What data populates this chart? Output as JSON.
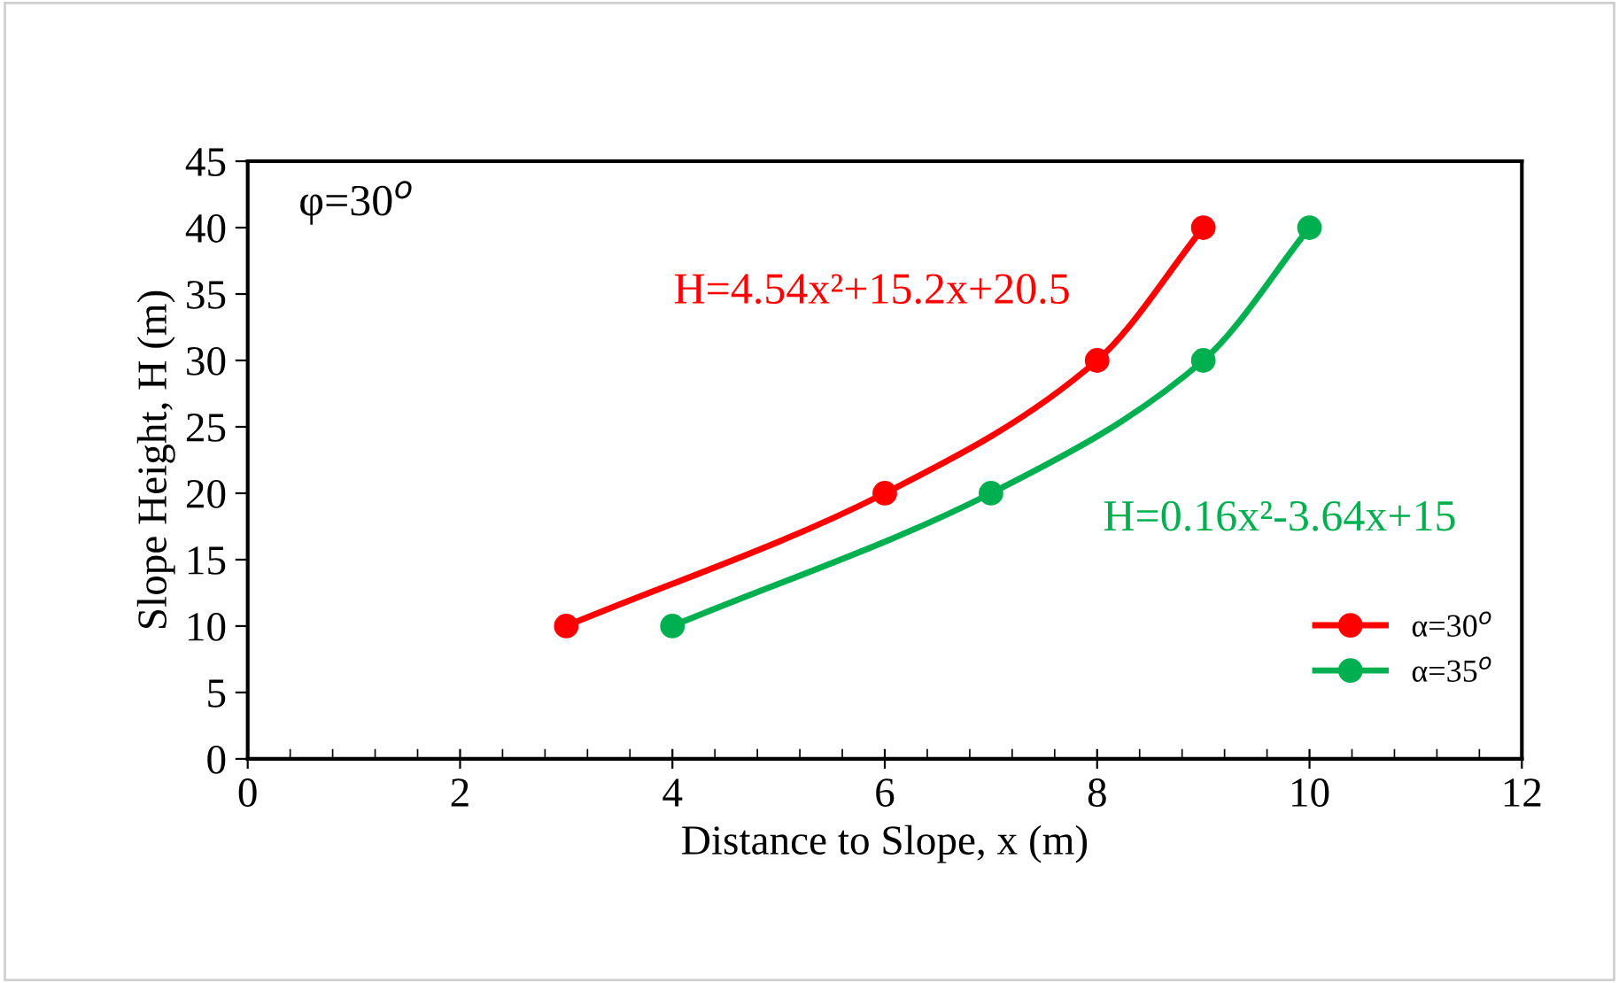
{
  "chart_data": {
    "type": "line",
    "xlabel": "Distance to Slope, x (m)",
    "ylabel": "Slope Height, H (m)",
    "xlim": [
      0,
      12
    ],
    "xticks": [
      0,
      2,
      4,
      6,
      8,
      10,
      12
    ],
    "ylim": [
      0,
      45
    ],
    "yticks": [
      0,
      5,
      10,
      15,
      20,
      25,
      30,
      35,
      40,
      45
    ],
    "grid": false,
    "legend": "right",
    "marker": "circle",
    "line_style": "solid",
    "series": [
      {
        "name": "α=30$^{o}$",
        "color": "#ff0000",
        "x": [
          3,
          6,
          8,
          9
        ],
        "values": [
          10,
          20,
          30,
          40
        ]
      },
      {
        "name": "α=35$^{o}$",
        "color": "#00b050",
        "x": [
          4,
          7,
          9,
          10
        ],
        "values": [
          10,
          20,
          30,
          40
        ]
      }
    ],
    "annotations": [
      {
        "text": "φ=30$^{o}$"
      },
      {
        "text": "H=4.54x²+15.2x+20.5"
      },
      {
        "text": "H=0.16x²-3.64x+15"
      }
    ]
  }
}
